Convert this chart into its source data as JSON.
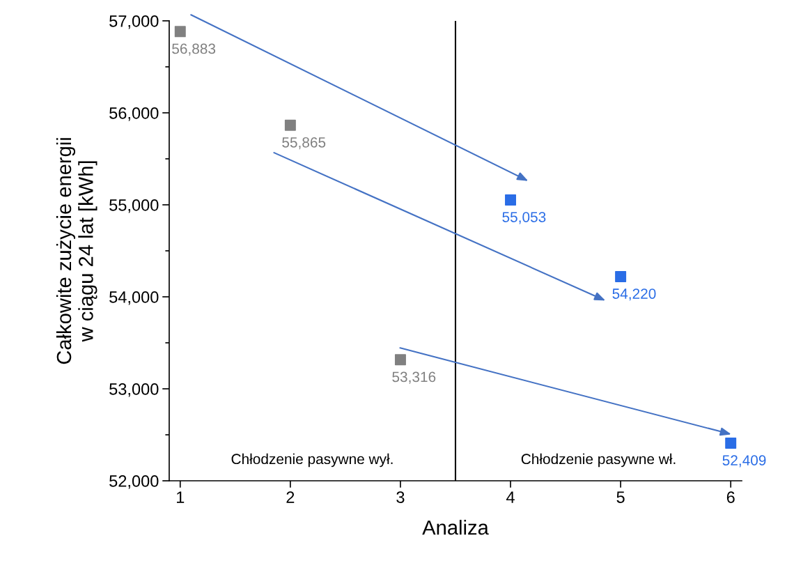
{
  "chart_data": {
    "type": "scatter",
    "xlabel": "Analiza",
    "ylabel": "Całkowite zużycie energii\nw ciągu 24 lat [kWh]",
    "series": [
      {
        "color": "#808080",
        "x": [
          1,
          2,
          3
        ],
        "values": [
          56883,
          55865,
          53316
        ],
        "value_labels": [
          "56,883",
          "55,865",
          "53,316"
        ]
      },
      {
        "color": "#2a6de6",
        "x": [
          4,
          5,
          6
        ],
        "values": [
          55053,
          54220,
          52409
        ],
        "value_labels": [
          "55,053",
          "54,220",
          "52,409"
        ]
      }
    ],
    "xlim": [
      0.9,
      6.1
    ],
    "xticks": [
      1,
      2,
      3,
      4,
      5,
      6
    ],
    "ylim": [
      52000,
      57000
    ],
    "yticks": [
      {
        "value": 52000,
        "label": "52,000"
      },
      {
        "value": 53000,
        "label": "53,000"
      },
      {
        "value": 54000,
        "label": "54,000"
      },
      {
        "value": 55000,
        "label": "55,000"
      },
      {
        "value": 56000,
        "label": "56,000"
      },
      {
        "value": 57000,
        "label": "57,000"
      }
    ],
    "ref_lines": [
      {
        "axis": "x",
        "value": 3.5,
        "color": "#000000"
      }
    ],
    "annotations": [
      "Chłodzenie pasywne wył.",
      "Chłodzenie pasywne wł."
    ],
    "marker": "square",
    "grid": false,
    "legend": false
  }
}
